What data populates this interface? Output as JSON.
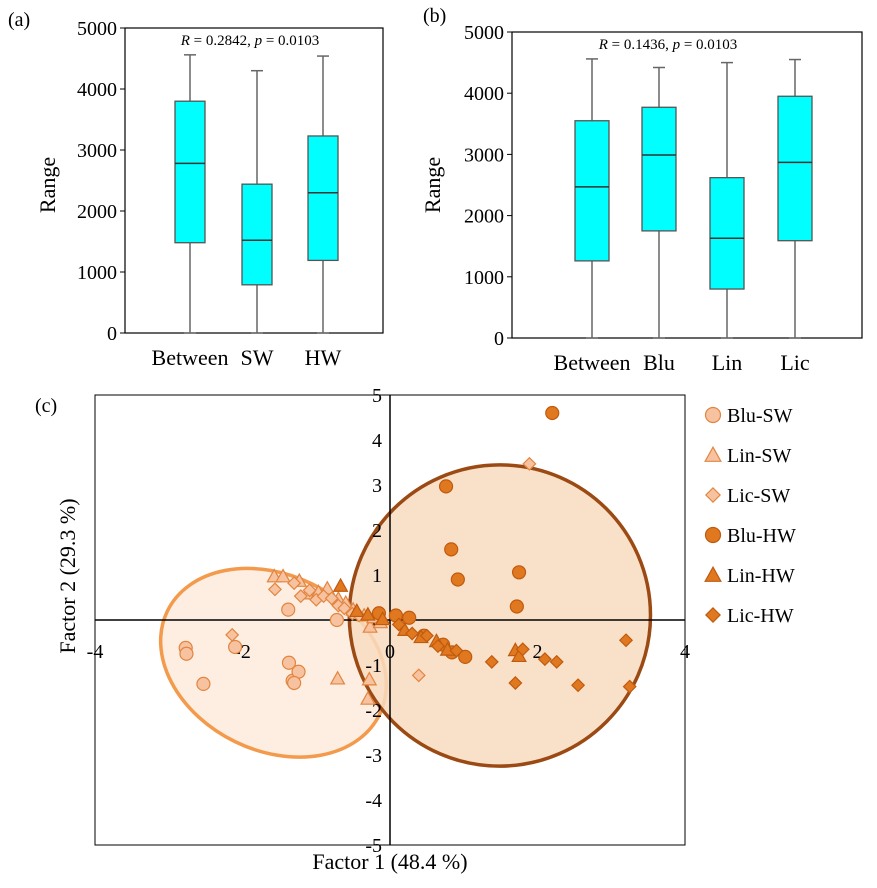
{
  "colors": {
    "box_fill": "#00FFFF",
    "sw_marker_fill": "#F7C2A0",
    "sw_marker_stroke": "#E2853F",
    "hw_marker_fill": "#E07820",
    "hw_marker_stroke": "#C05A0E",
    "sw_ellipse_stroke": "#F39A4C",
    "sw_ellipse_fill": "#FDEBDC",
    "hw_ellipse_stroke": "#9C4A14",
    "hw_ellipse_fill": "#F8DCC0"
  },
  "chart_data": [
    {
      "type": "box",
      "panel_label": "(a)",
      "annotation": {
        "r_label": "R",
        "r_value": " = 0.2842, ",
        "p_label": "p",
        "p_value": " = 0.0103"
      },
      "ylabel": "Range",
      "xlabel": "",
      "ylim": [
        0,
        5000
      ],
      "yticks": [
        0,
        1000,
        2000,
        3000,
        4000,
        5000
      ],
      "categories": [
        "Between",
        "SW",
        "HW"
      ],
      "boxes": [
        {
          "min": 0,
          "q1": 1480,
          "median": 2780,
          "q3": 3800,
          "max": 4560
        },
        {
          "min": 0,
          "q1": 790,
          "median": 1520,
          "q3": 2440,
          "max": 4300
        },
        {
          "min": 0,
          "q1": 1190,
          "median": 2300,
          "q3": 3230,
          "max": 4540
        }
      ]
    },
    {
      "type": "box",
      "panel_label": "(b)",
      "annotation": {
        "r_label": "R",
        "r_value": " = 0.1436, ",
        "p_label": "p",
        "p_value": " = 0.0103"
      },
      "ylabel": "Range",
      "xlabel": "",
      "ylim": [
        0,
        5000
      ],
      "yticks": [
        0,
        1000,
        2000,
        3000,
        4000,
        5000
      ],
      "categories": [
        "Between",
        "Blu",
        "Lin",
        "Lic"
      ],
      "boxes": [
        {
          "min": 0,
          "q1": 1260,
          "median": 2470,
          "q3": 3550,
          "max": 4560
        },
        {
          "min": 0,
          "q1": 1750,
          "median": 2990,
          "q3": 3770,
          "max": 4420
        },
        {
          "min": 0,
          "q1": 800,
          "median": 1630,
          "q3": 2620,
          "max": 4500
        },
        {
          "min": 0,
          "q1": 1590,
          "median": 2870,
          "q3": 3950,
          "max": 4550
        }
      ]
    },
    {
      "type": "scatter",
      "panel_label": "(c)",
      "xlabel": "Factor  1 (48.4 %)",
      "ylabel": "Factor  2 (29.3 %)",
      "xlim": [
        -4,
        4
      ],
      "ylim": [
        -5,
        5
      ],
      "xtick_labels": [
        {
          "x": -4,
          "label": "-4"
        },
        {
          "x": -2,
          "label": "-2"
        },
        {
          "x": 0,
          "label": "0"
        },
        {
          "x": 2,
          "label": "2"
        },
        {
          "x": 4,
          "label": "4"
        }
      ],
      "ytick_labels": [
        {
          "y": 5,
          "label": "5"
        },
        {
          "y": 4,
          "label": "4"
        },
        {
          "y": 3,
          "label": "3"
        },
        {
          "y": 2,
          "label": "2"
        },
        {
          "y": 1,
          "label": "1"
        },
        {
          "y": 0,
          "label": "0"
        },
        {
          "y": -1,
          "label": "-1"
        },
        {
          "y": -2,
          "label": "-2"
        },
        {
          "y": -3,
          "label": "-3"
        },
        {
          "y": -4,
          "label": "-4"
        },
        {
          "y": -5,
          "label": "-5"
        }
      ],
      "ellipses": [
        {
          "group": "SW",
          "cx": -1.58,
          "cy": -0.95,
          "rx": 1.6,
          "ry": 1.95,
          "angle_deg": 26
        },
        {
          "group": "HW",
          "cx": 1.49,
          "cy": 0.1,
          "rx": 2.04,
          "ry": 3.35,
          "angle_deg": 45
        }
      ],
      "series": [
        {
          "name": "Blu-SW",
          "marker": "circle",
          "style": "sw",
          "points": [
            [
              -2.77,
              -0.62
            ],
            [
              -2.76,
              -0.75
            ],
            [
              -2.53,
              -1.42
            ],
            [
              -2.1,
              -0.6
            ],
            [
              -1.37,
              -0.95
            ],
            [
              -1.32,
              -1.35
            ],
            [
              -1.24,
              -1.15
            ],
            [
              -1.3,
              -1.4
            ],
            [
              -1.38,
              0.23
            ],
            [
              -0.72,
              0.0
            ]
          ]
        },
        {
          "name": "Lin-SW",
          "marker": "triangle",
          "style": "sw",
          "points": [
            [
              -1.57,
              0.97
            ],
            [
              -1.45,
              0.97
            ],
            [
              -1.23,
              0.87
            ],
            [
              -1.12,
              0.59
            ],
            [
              -0.97,
              0.62
            ],
            [
              -0.85,
              0.7
            ],
            [
              -0.7,
              0.47
            ],
            [
              -0.6,
              0.38
            ],
            [
              -0.5,
              0.23
            ],
            [
              -0.35,
              0.1
            ],
            [
              -0.27,
              -0.15
            ],
            [
              -0.22,
              0.06
            ],
            [
              -0.71,
              -1.3
            ],
            [
              -0.28,
              -1.32
            ],
            [
              -0.3,
              -1.75
            ],
            [
              -0.13,
              -0.05
            ]
          ]
        },
        {
          "name": "Lic-SW",
          "marker": "diamond",
          "style": "sw",
          "points": [
            [
              -2.14,
              -0.33
            ],
            [
              -1.56,
              0.68
            ],
            [
              -1.3,
              0.82
            ],
            [
              -1.21,
              0.53
            ],
            [
              -1.09,
              0.66
            ],
            [
              -1.0,
              0.45
            ],
            [
              -0.9,
              0.53
            ],
            [
              -0.79,
              0.48
            ],
            [
              -0.7,
              0.32
            ],
            [
              -0.62,
              0.26
            ],
            [
              -0.51,
              0.14
            ],
            [
              -0.42,
              0.1
            ],
            [
              0.39,
              -1.23
            ],
            [
              1.89,
              3.47
            ]
          ]
        },
        {
          "name": "Blu-HW",
          "marker": "circle",
          "style": "hw",
          "points": [
            [
              2.2,
              4.6
            ],
            [
              0.76,
              2.97
            ],
            [
              0.83,
              1.57
            ],
            [
              0.92,
              0.9
            ],
            [
              1.75,
              1.06
            ],
            [
              1.72,
              0.3
            ],
            [
              -0.15,
              0.15
            ],
            [
              0.08,
              0.1
            ],
            [
              0.26,
              0.05
            ],
            [
              0.46,
              -0.35
            ],
            [
              0.72,
              -0.55
            ],
            [
              0.84,
              -0.72
            ],
            [
              1.02,
              -0.82
            ]
          ]
        },
        {
          "name": "Lin-HW",
          "marker": "triangle",
          "style": "hw",
          "points": [
            [
              -0.67,
              0.76
            ],
            [
              -0.45,
              0.2
            ],
            [
              -0.3,
              0.12
            ],
            [
              -0.1,
              0.02
            ],
            [
              0.2,
              -0.22
            ],
            [
              0.42,
              -0.38
            ],
            [
              0.63,
              -0.47
            ],
            [
              0.78,
              -0.66
            ],
            [
              1.7,
              -0.67
            ],
            [
              1.75,
              -0.8
            ]
          ]
        },
        {
          "name": "Lic-HW",
          "marker": "diamond",
          "style": "hw",
          "points": [
            [
              0.12,
              -0.1
            ],
            [
              0.3,
              -0.3
            ],
            [
              0.5,
              -0.35
            ],
            [
              0.65,
              -0.58
            ],
            [
              0.9,
              -0.68
            ],
            [
              1.38,
              -0.93
            ],
            [
              1.7,
              -1.4
            ],
            [
              1.8,
              -0.65
            ],
            [
              2.1,
              -0.87
            ],
            [
              2.26,
              -0.93
            ],
            [
              2.55,
              -1.45
            ],
            [
              3.2,
              -0.45
            ],
            [
              3.25,
              -1.48
            ]
          ]
        }
      ],
      "legend": {
        "position": "right",
        "entries": [
          "Blu-SW",
          "Lin-SW",
          "Lic-SW",
          "Blu-HW",
          "Lin-HW",
          "Lic-HW"
        ]
      }
    }
  ]
}
